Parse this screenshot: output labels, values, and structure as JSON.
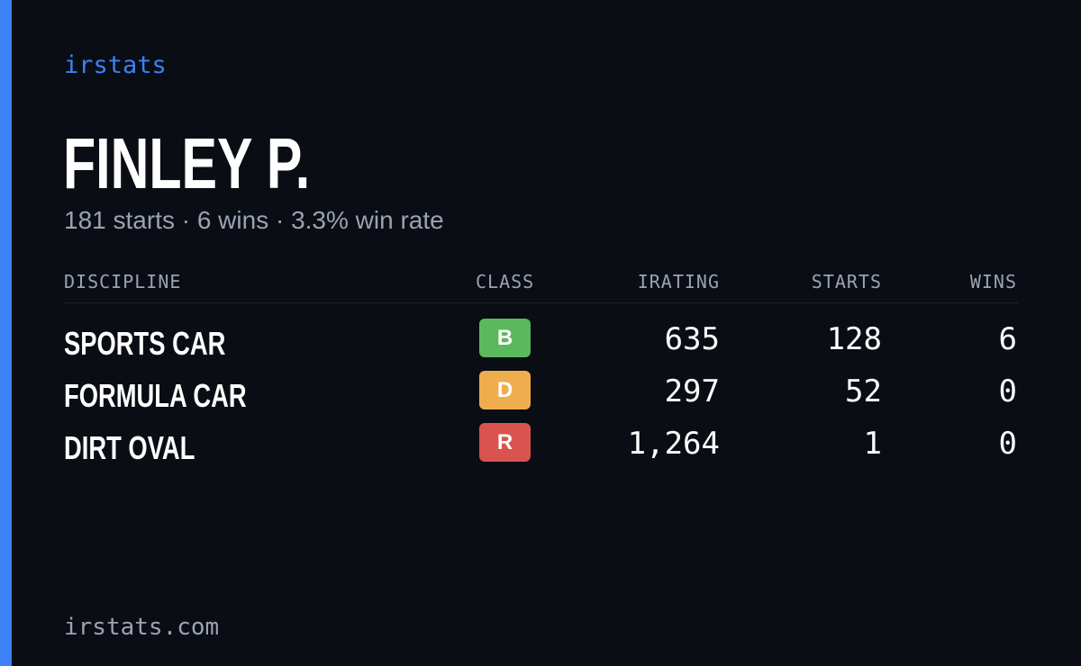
{
  "brand": "irstats",
  "driver": {
    "name": "FINLEY P.",
    "summary": "181 starts · 6 wins · 3.3% win rate"
  },
  "table": {
    "headers": {
      "discipline": "DISCIPLINE",
      "class": "CLASS",
      "irating": "IRATING",
      "starts": "STARTS",
      "wins": "WINS"
    },
    "rows": [
      {
        "discipline": "SPORTS CAR",
        "class": "B",
        "class_color": "#5cb85c",
        "irating": "635",
        "starts": "128",
        "wins": "6"
      },
      {
        "discipline": "FORMULA CAR",
        "class": "D",
        "class_color": "#f0ad4e",
        "irating": "297",
        "starts": "52",
        "wins": "0"
      },
      {
        "discipline": "DIRT OVAL",
        "class": "R",
        "class_color": "#d9534f",
        "irating": "1,264",
        "starts": "1",
        "wins": "0"
      }
    ]
  },
  "footer": "irstats.com",
  "colors": {
    "accent": "#3b82f6",
    "background": "#0a0d14",
    "muted": "#9aa3b2"
  }
}
